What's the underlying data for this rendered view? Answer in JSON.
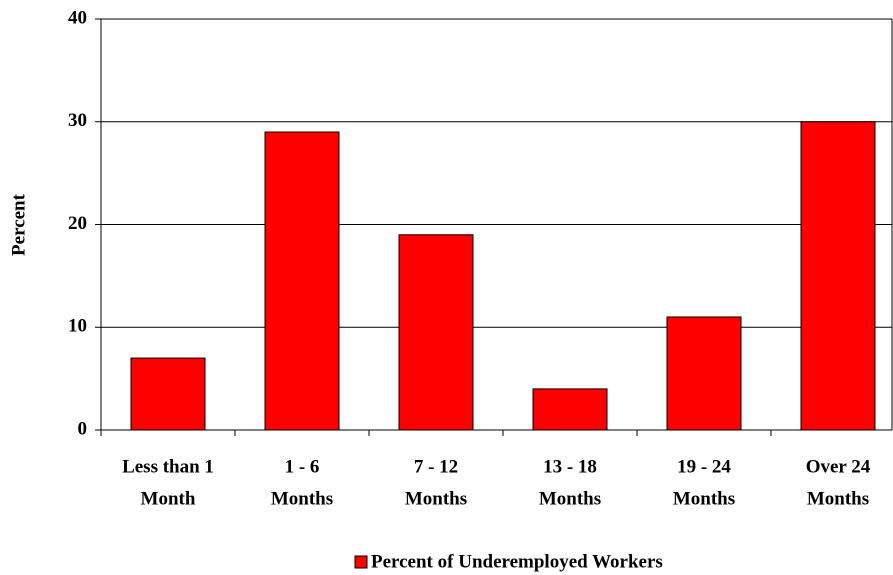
{
  "chart_data": {
    "type": "bar",
    "y_label": "Percent",
    "categories": [
      [
        "Less than 1",
        "Month"
      ],
      [
        "1 - 6",
        "Months"
      ],
      [
        "7 - 12",
        "Months"
      ],
      [
        "13 - 18",
        "Months"
      ],
      [
        "19 - 24",
        "Months"
      ],
      [
        "Over 24",
        "Months"
      ]
    ],
    "series": [
      {
        "name": "Percent of Underemployed Workers",
        "color": "#ff0000",
        "values": [
          7,
          29,
          19,
          4,
          11,
          30
        ]
      }
    ],
    "ylim": [
      0,
      40
    ],
    "yticks": [
      0,
      10,
      20,
      30,
      40
    ],
    "grid": true,
    "legend": "bottom"
  }
}
